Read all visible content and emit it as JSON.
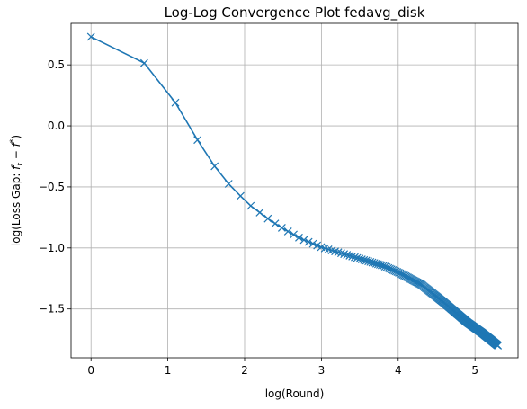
{
  "chart_data": {
    "type": "line",
    "title": "Log-Log Convergence Plot fedavg_disk",
    "xlabel": "log(Round)",
    "ylabel_prefix": "log(Loss Gap: ",
    "ylabel_math": "f",
    "ylabel_sub": "t",
    "ylabel_minus": " − ",
    "ylabel_star": "*",
    "ylabel_suffix": ")",
    "xlim": [
      -0.26,
      5.56
    ],
    "ylim": [
      -1.9,
      0.84
    ],
    "xticks": [
      0,
      1,
      2,
      3,
      4,
      5
    ],
    "xtick_labels": [
      "0",
      "1",
      "2",
      "3",
      "4",
      "5"
    ],
    "yticks": [
      -1.5,
      -1.0,
      -0.5,
      0.0,
      0.5
    ],
    "ytick_labels": [
      "−1.5",
      "−1.0",
      "−0.5",
      "0.0",
      "0.5"
    ],
    "grid": true,
    "color": "#1f77b4",
    "marker": "x",
    "series": [
      {
        "x_rounds_start": 1,
        "x_rounds_end": 200,
        "y_anchors": [
          [
            0.0,
            0.73
          ],
          [
            0.693,
            0.515
          ],
          [
            1.099,
            0.19
          ],
          [
            1.386,
            -0.115
          ],
          [
            1.609,
            -0.33
          ],
          [
            1.792,
            -0.475
          ],
          [
            1.946,
            -0.575
          ],
          [
            2.079,
            -0.655
          ],
          [
            2.197,
            -0.71
          ],
          [
            2.303,
            -0.76
          ],
          [
            2.398,
            -0.8
          ],
          [
            2.485,
            -0.835
          ],
          [
            2.565,
            -0.865
          ],
          [
            2.639,
            -0.89
          ],
          [
            2.708,
            -0.915
          ],
          [
            2.773,
            -0.935
          ],
          [
            2.833,
            -0.95
          ],
          [
            3.0,
            -0.995
          ],
          [
            3.4,
            -1.07
          ],
          [
            3.8,
            -1.145
          ],
          [
            4.0,
            -1.2
          ],
          [
            4.3,
            -1.3
          ],
          [
            4.6,
            -1.45
          ],
          [
            4.9,
            -1.61
          ],
          [
            5.1,
            -1.7
          ],
          [
            5.298,
            -1.8
          ]
        ]
      }
    ]
  }
}
